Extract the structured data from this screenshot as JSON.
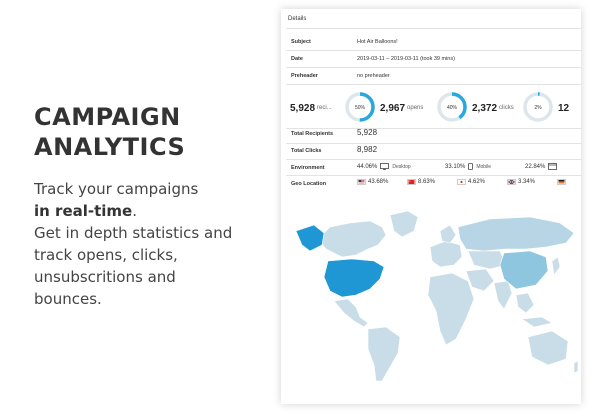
{
  "promo": {
    "title_line1": "CAMPAIGN",
    "title_line2": "ANALYTICS",
    "line1": "Track your campaigns",
    "line2_bold": "in real-time",
    "line2_end": ".",
    "line3": "Get in depth statistics and",
    "line4": "track opens, clicks,",
    "line5": "unsubscritions and",
    "line6": "bounces."
  },
  "details": {
    "title": "Details",
    "subject_label": "Subject",
    "subject_value": "Hot Air Balloons!",
    "date_label": "Date",
    "date_value": "2019-03-11 – 2019-03-11 (took 39 mins)",
    "preheader_label": "Preheader",
    "preheader_value": "no preheader"
  },
  "stats": {
    "recipients_num": "5,928",
    "recipients_sub": "reci...",
    "opens_ring_pct": "50%",
    "opens_ring_fraction": 0.5,
    "opens_num": "2,967",
    "opens_sub": "opens",
    "clicks_ring_pct": "40%",
    "clicks_ring_fraction": 0.4,
    "clicks_num": "2,372",
    "clicks_sub": "clicks",
    "third_ring_pct": "2%",
    "third_ring_fraction": 0.02,
    "cut_num": "12"
  },
  "totals": {
    "recipients_label": "Total Recipients",
    "recipients_value": "5,928",
    "clicks_label": "Total Clicks",
    "clicks_value": "8,982"
  },
  "environment": {
    "label": "Environment",
    "desktop_pct": "44.06%",
    "desktop_label": "Desktop",
    "mobile_pct": "33.10%",
    "mobile_label": "Mobile",
    "other_pct": "22.84%"
  },
  "geo": {
    "label": "Geo Location",
    "us_pct": "43.68%",
    "cn_pct": "8.63%",
    "jp_pct": "4.62%",
    "gb_pct": "3.34%"
  },
  "colors": {
    "accent": "#29a8e0",
    "ring_track": "#dde6ec",
    "land": "#c9dde8",
    "highlight_us": "#1f97d4",
    "highlight_cn": "#8ec6e0",
    "highlight_ru": "#b7d5e4"
  }
}
